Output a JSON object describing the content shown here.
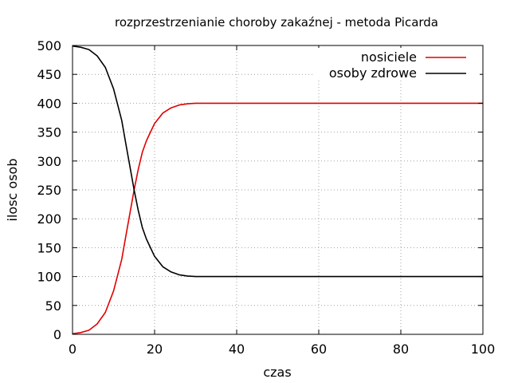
{
  "chart_data": {
    "type": "line",
    "title": "rozprzestrzenianie choroby zakaźnej - metoda Picarda",
    "xlabel": "czas",
    "ylabel": "ilosc osob",
    "xlim": [
      0,
      100
    ],
    "ylim": [
      0,
      500
    ],
    "x_ticks": [
      0,
      20,
      40,
      60,
      80,
      100
    ],
    "y_ticks": [
      0,
      50,
      100,
      150,
      200,
      250,
      300,
      350,
      400,
      450,
      500
    ],
    "grid": true,
    "legend_position": "top-right",
    "series": [
      {
        "name": "nosiciele",
        "color": "#e00000",
        "x": [
          0,
          2,
          4,
          6,
          8,
          10,
          12,
          13,
          14,
          15,
          16,
          17,
          18,
          19,
          20,
          22,
          24,
          26,
          28,
          30,
          35,
          40,
          60,
          80,
          100
        ],
        "y": [
          1,
          3,
          7,
          18,
          38,
          75,
          130,
          170,
          210,
          250,
          285,
          315,
          335,
          350,
          365,
          383,
          392,
          397,
          399,
          400,
          400,
          400,
          400,
          400,
          400
        ]
      },
      {
        "name": "osoby zdrowe",
        "color": "#000000",
        "x": [
          0,
          2,
          4,
          6,
          8,
          10,
          12,
          13,
          14,
          15,
          16,
          17,
          18,
          19,
          20,
          22,
          24,
          26,
          28,
          30,
          35,
          40,
          60,
          80,
          100
        ],
        "y": [
          499,
          497,
          493,
          482,
          462,
          425,
          370,
          330,
          290,
          250,
          215,
          185,
          165,
          150,
          135,
          117,
          108,
          103,
          101,
          100,
          100,
          100,
          100,
          100,
          100
        ]
      }
    ]
  }
}
